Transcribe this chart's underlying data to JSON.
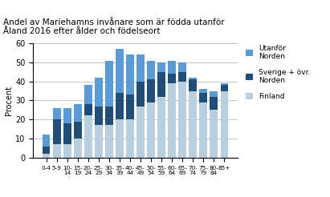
{
  "title": "Andel av Mariehamns invånare som är födda utanför\nÅland 2016 efter ålder och födelseort",
  "ylabel": "Procent",
  "ylim": [
    0,
    60
  ],
  "yticks": [
    0,
    10,
    20,
    30,
    40,
    50,
    60
  ],
  "categories_line1": [
    "0-4",
    "5-9",
    "10-",
    "15-",
    "20-",
    "25-",
    "30-",
    "35-",
    "40-",
    "45-",
    "50-",
    "55-",
    "60-",
    "65-",
    "70-",
    "75-",
    "80-",
    "85+"
  ],
  "categories_line2": [
    "",
    "",
    "14",
    "19",
    "24",
    "29",
    "34",
    "39",
    "44",
    "49",
    "54",
    "59",
    "64",
    "69",
    "74",
    "79",
    "84",
    ""
  ],
  "finland": [
    2,
    7,
    7,
    10,
    22,
    17,
    17,
    20,
    20,
    27,
    29,
    32,
    39,
    40,
    35,
    29,
    25,
    35
  ],
  "sverige": [
    4,
    13,
    11,
    9,
    6,
    10,
    10,
    14,
    13,
    13,
    12,
    13,
    5,
    5,
    6,
    5,
    7,
    3
  ],
  "utanfor": [
    6,
    6,
    8,
    9,
    10,
    15,
    24,
    23,
    21,
    14,
    10,
    5,
    7,
    5,
    1,
    2,
    3,
    1
  ],
  "color_finland": "#b8cfe0",
  "color_sverige": "#1f4e79",
  "color_utanfor": "#5b9bd5",
  "legend_labels": [
    "Utanför\nNorden",
    "Sverige + övr.\nNorden",
    "Finland"
  ],
  "figsize": [
    4.11,
    2.46
  ],
  "dpi": 100
}
